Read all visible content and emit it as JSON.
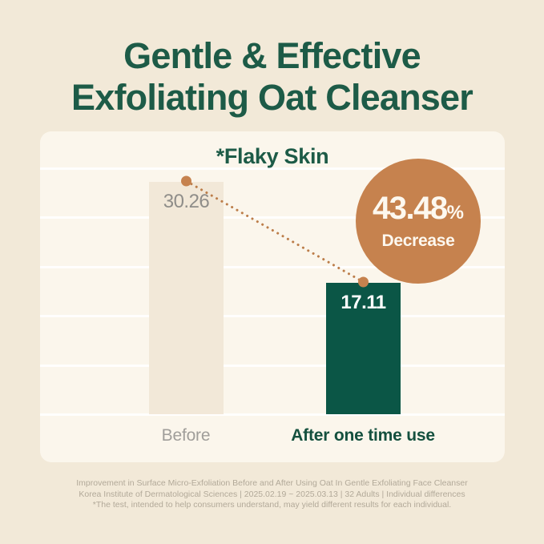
{
  "title": {
    "line1": "Gentle & Effective",
    "line2": "Exfoliating Oat Cleanser"
  },
  "chart_data": {
    "type": "bar",
    "subtitle": "*Flaky Skin",
    "categories": [
      "Before",
      "After one time use"
    ],
    "values": [
      30.26,
      17.11
    ],
    "value_labels": [
      "30.26",
      "17.11"
    ],
    "ylim": [
      0,
      32
    ],
    "grid": true,
    "gridline_count": 6,
    "legend_position": "none",
    "annotation": {
      "percent": "43.48",
      "percent_sign": "%",
      "label": "Decrease"
    },
    "connector": "dotted-line-between-bar-tops"
  },
  "footnote": {
    "line1": "Improvement in Surface Micro-Exfoliation Before and After Using Oat In Gentle Exfoliating Face Cleanser",
    "line2": "Korea Institute of Dermatological Sciences | 2025.02.19 ~ 2025.03.13 | 32 Adults | Individual differences",
    "line3": "*The test, intended to help consumers understand, may yield different results for each individual."
  },
  "colors": {
    "background": "#f2e9d8",
    "panel": "#fbf6ec",
    "title_green": "#1d5b47",
    "bar_before": "#f2e8d8",
    "bar_after": "#0b5646",
    "accent_orange": "#c6824e",
    "dotted_line": "#bc7d49",
    "badge_text": "#fdf8ef",
    "value_before_text": "#8f8d89",
    "value_after_text": "#ffffff",
    "label_before": "#a09e9a",
    "label_after": "#14503e",
    "footnote_text": "#b2a999"
  }
}
